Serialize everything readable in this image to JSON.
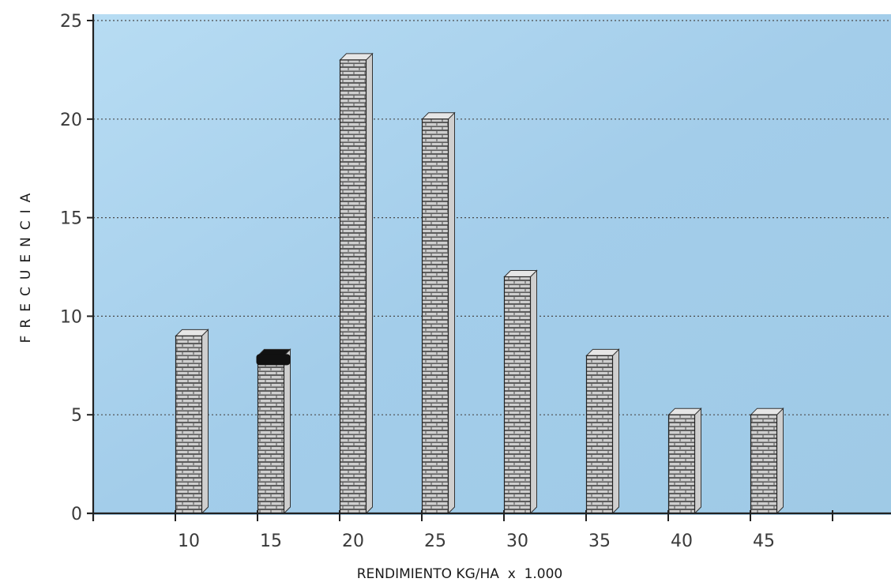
{
  "chart_data": {
    "type": "bar",
    "title": "",
    "xlabel": "RENDIMIENTO KG/HA  x  1.000",
    "ylabel": "FRECUENCIA",
    "categories": [
      "10",
      "15",
      "20",
      "25",
      "30",
      "35",
      "40",
      "45"
    ],
    "values": [
      9,
      8,
      23,
      20,
      12,
      8,
      5,
      5
    ],
    "ylim": [
      0,
      25
    ],
    "yticks": [
      "0",
      "5",
      "10",
      "15",
      "20",
      "25"
    ],
    "grid": true,
    "legend": "none",
    "colors": {
      "plot_background": "#a9d3ee",
      "bar_face": "#8e8e8e",
      "bar_brick_line": "#2b2b2b",
      "bar_side": "#cfcfcf",
      "bar_top": "#e6e6e6",
      "highlight_top": "#111111",
      "grid": "#4a4a4a",
      "axis": "#222222"
    }
  }
}
